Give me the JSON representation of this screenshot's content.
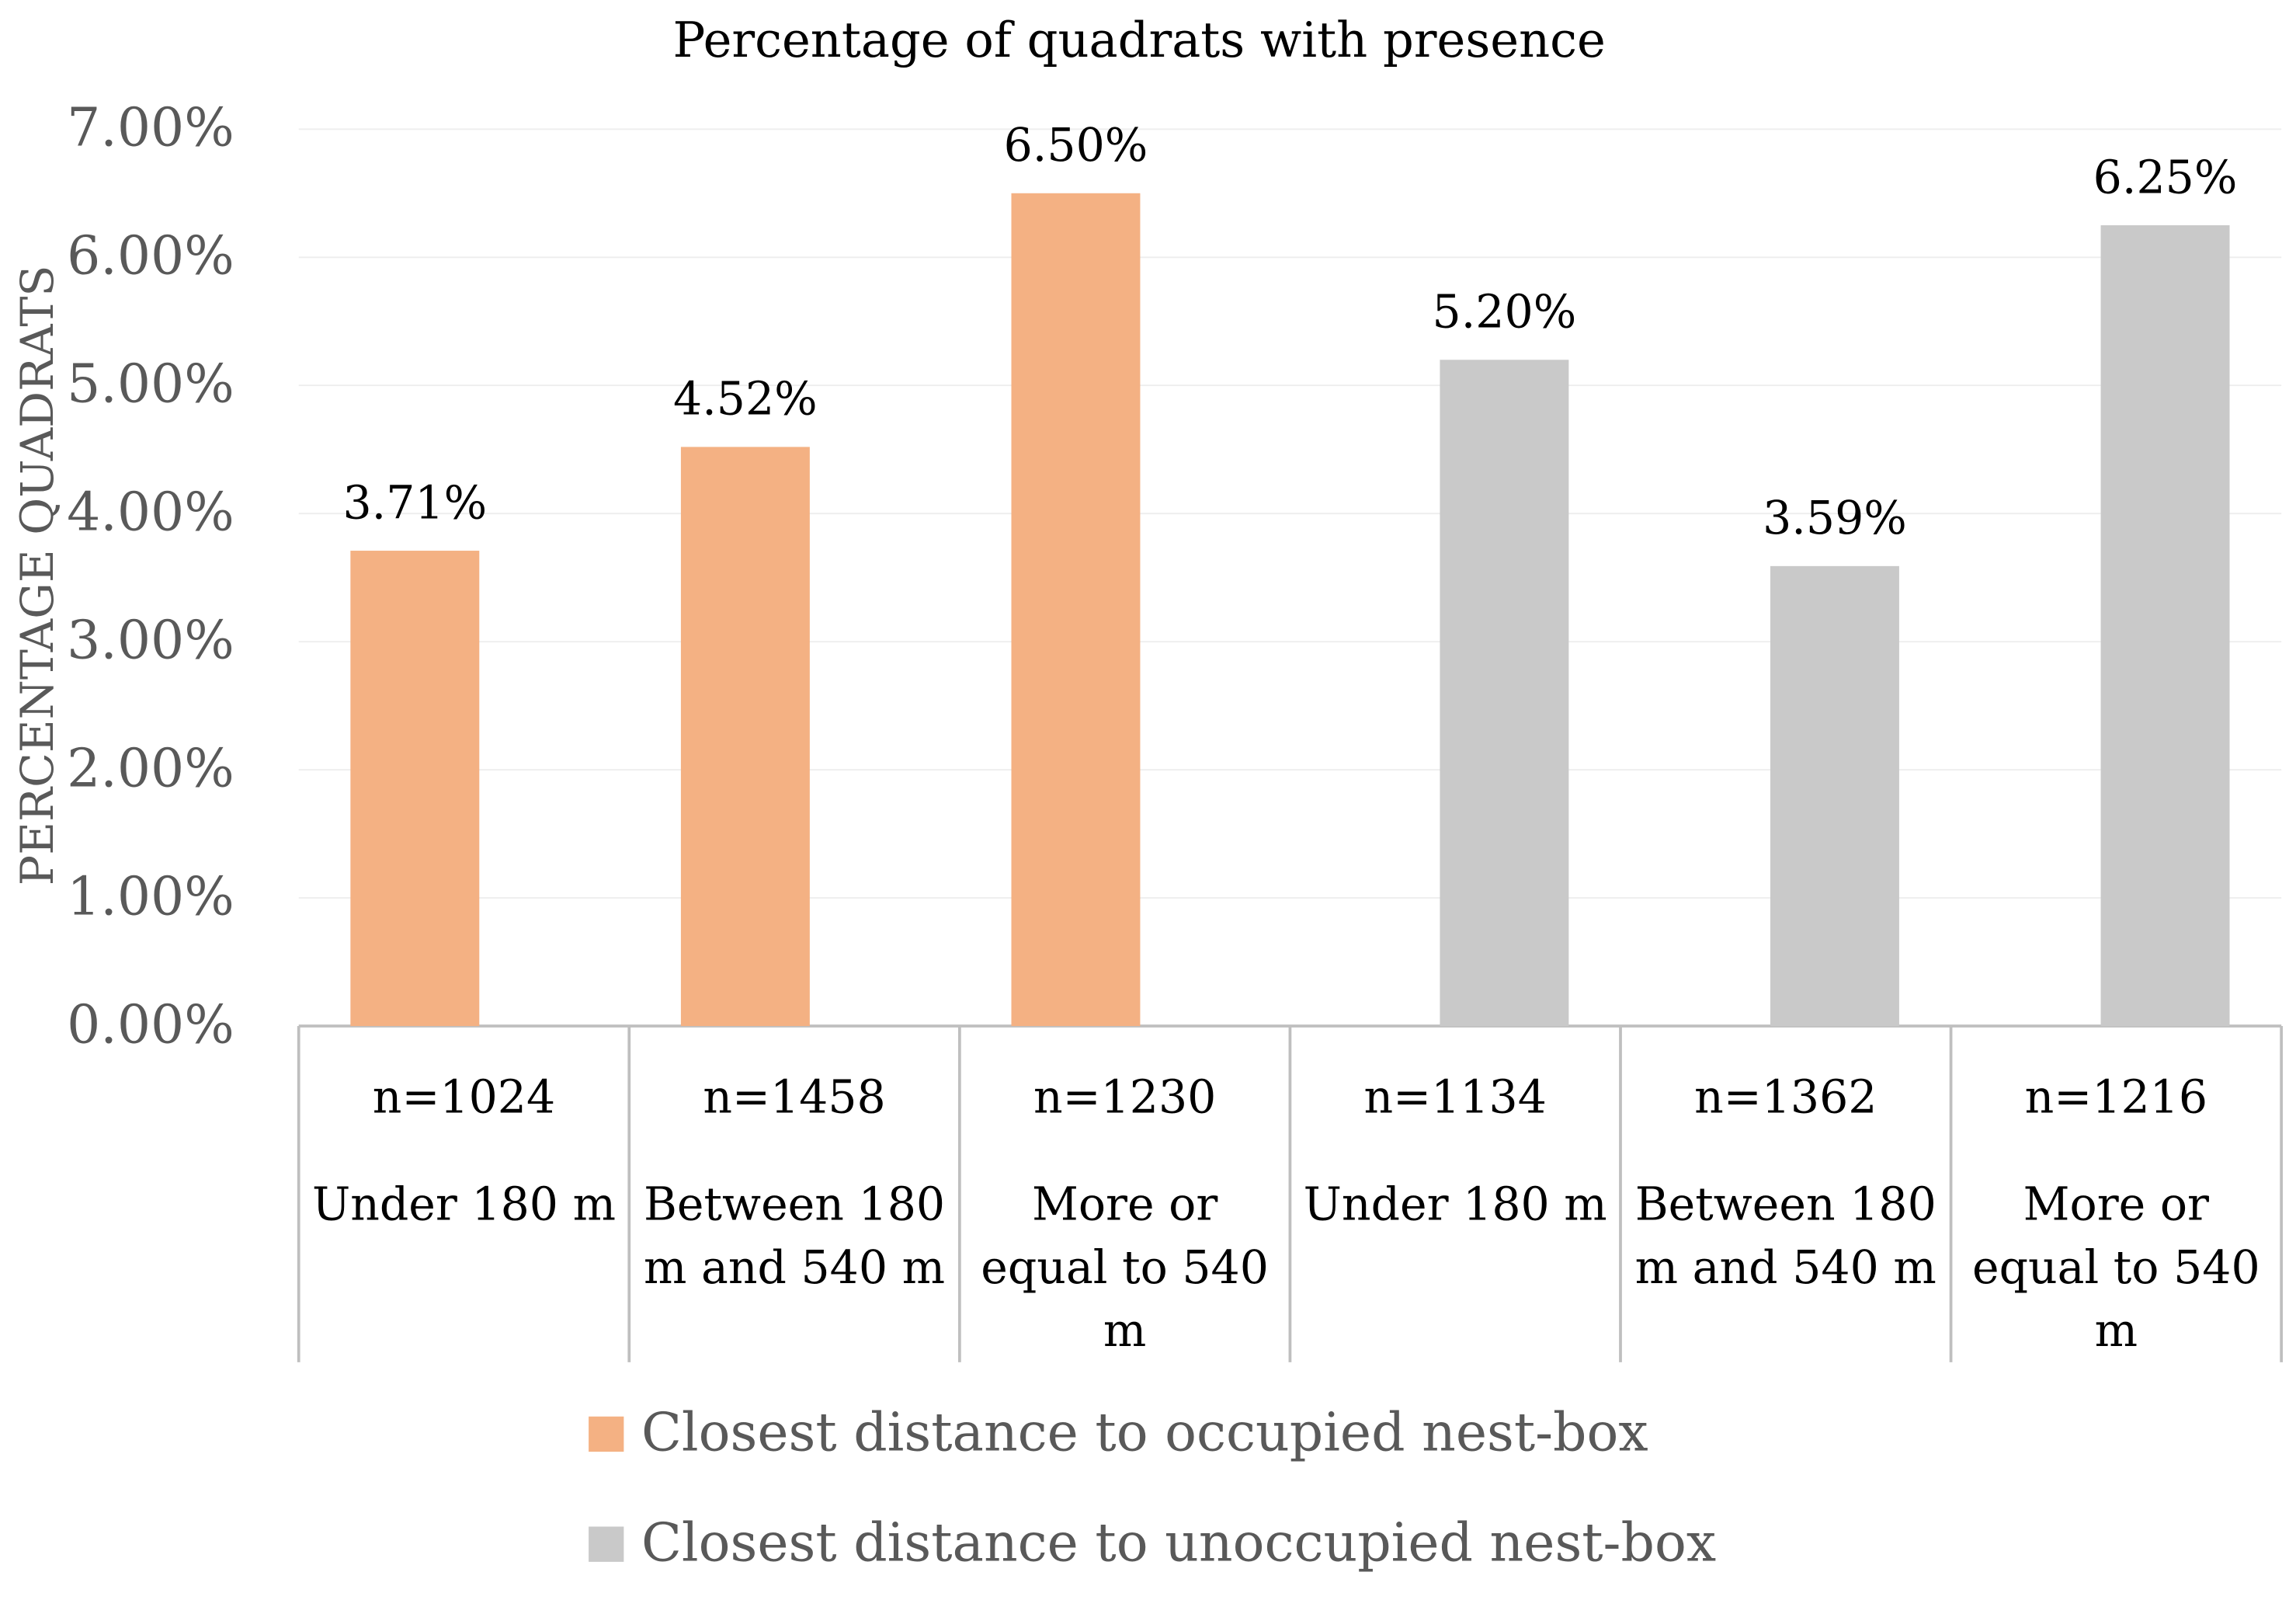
{
  "chart_data": {
    "type": "bar",
    "title": "Percentage of quadrats with presence",
    "y_label": "PERCENTAGE QUADRATS",
    "sample_sizes": [
      "n=1024",
      "n=1458",
      "n=1230",
      "n=1134",
      "n=1362",
      "n=1216"
    ],
    "categories": [
      "Under 180 m",
      "Between 180 m and 540 m",
      "More or equal to 540 m",
      "Under 180 m",
      "Between 180 m and 540 m",
      "More or equal to 540 m"
    ],
    "series": [
      {
        "name": "Closest distance to occupied nest-box",
        "color": "#f4b183",
        "values": [
          3.71,
          4.52,
          6.5,
          null,
          null,
          null
        ],
        "value_labels": [
          "3.71%",
          "4.52%",
          "6.50%",
          null,
          null,
          null
        ]
      },
      {
        "name": "Closest distance to unoccupied nest-box",
        "color": "#c9c9c9",
        "values": [
          null,
          null,
          null,
          5.2,
          3.59,
          6.25
        ],
        "value_labels": [
          null,
          null,
          null,
          "5.20%",
          "3.59%",
          "6.25%"
        ]
      }
    ],
    "ylim": [
      0,
      7
    ],
    "yticks": [
      {
        "value": 0,
        "label": "0.00%"
      },
      {
        "value": 1,
        "label": "1.00%"
      },
      {
        "value": 2,
        "label": "2.00%"
      },
      {
        "value": 3,
        "label": "3.00%"
      },
      {
        "value": 4,
        "label": "4.00%"
      },
      {
        "value": 5,
        "label": "5.00%"
      },
      {
        "value": 6,
        "label": "6.00%"
      },
      {
        "value": 7,
        "label": "7.00%"
      }
    ],
    "grid": true,
    "legend": "bottom"
  }
}
